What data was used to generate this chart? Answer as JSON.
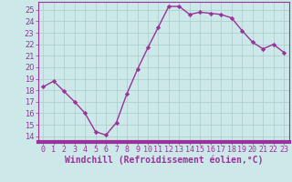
{
  "x": [
    0,
    1,
    2,
    3,
    4,
    5,
    6,
    7,
    8,
    9,
    10,
    11,
    12,
    13,
    14,
    15,
    16,
    17,
    18,
    19,
    20,
    21,
    22,
    23
  ],
  "y": [
    18.3,
    18.8,
    17.9,
    17.0,
    16.0,
    14.4,
    14.1,
    15.2,
    17.7,
    19.8,
    21.7,
    23.5,
    25.3,
    25.3,
    24.6,
    24.8,
    24.7,
    24.6,
    24.3,
    23.2,
    22.2,
    21.6,
    22.0,
    21.3
  ],
  "line_color": "#993399",
  "marker": "D",
  "marker_size": 2.2,
  "bg_color": "#cce8e8",
  "grid_color": "#aacccc",
  "xlabel": "Windchill (Refroidissement éolien,°C)",
  "xlabel_color": "#993399",
  "tick_color": "#993399",
  "ylim": [
    13.5,
    25.7
  ],
  "yticks": [
    14,
    15,
    16,
    17,
    18,
    19,
    20,
    21,
    22,
    23,
    24,
    25
  ],
  "xtick_labels": [
    "0",
    "1",
    "2",
    "3",
    "4",
    "5",
    "6",
    "7",
    "8",
    "9",
    "10",
    "11",
    "12",
    "13",
    "14",
    "15",
    "16",
    "17",
    "18",
    "19",
    "20",
    "21",
    "22",
    "23"
  ],
  "spine_color": "#993399",
  "axis_bar_color": "#993399",
  "line_width": 1.0,
  "tick_fontsize": 6.0,
  "xlabel_fontsize": 7.0,
  "xlim": [
    -0.5,
    23.5
  ]
}
